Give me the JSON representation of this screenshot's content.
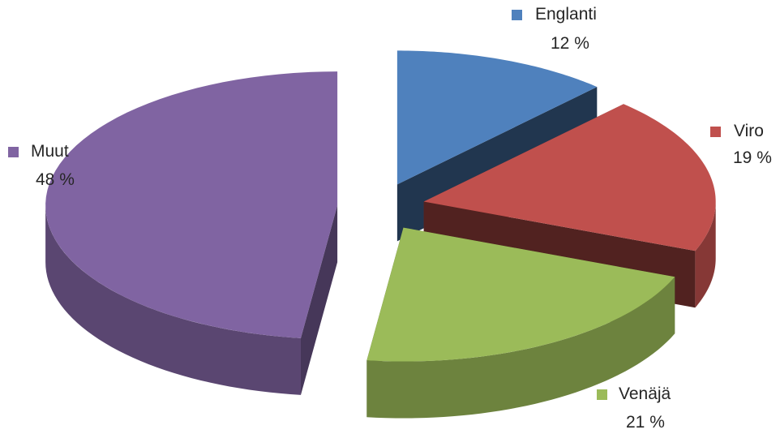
{
  "chart_data": {
    "type": "pie",
    "style": "3d-exploded",
    "title": "",
    "slices": [
      {
        "label": "Englanti",
        "value": 12,
        "value_label": "12 %",
        "color": "#4F81BD"
      },
      {
        "label": "Viro",
        "value": 19,
        "value_label": "19 %",
        "color": "#C0504D"
      },
      {
        "label": "Venäjä",
        "value": 21,
        "value_label": "21 %",
        "color": "#9BBB59"
      },
      {
        "label": "Muut",
        "value": 48,
        "value_label": "48 %",
        "color": "#8064A2"
      }
    ]
  }
}
